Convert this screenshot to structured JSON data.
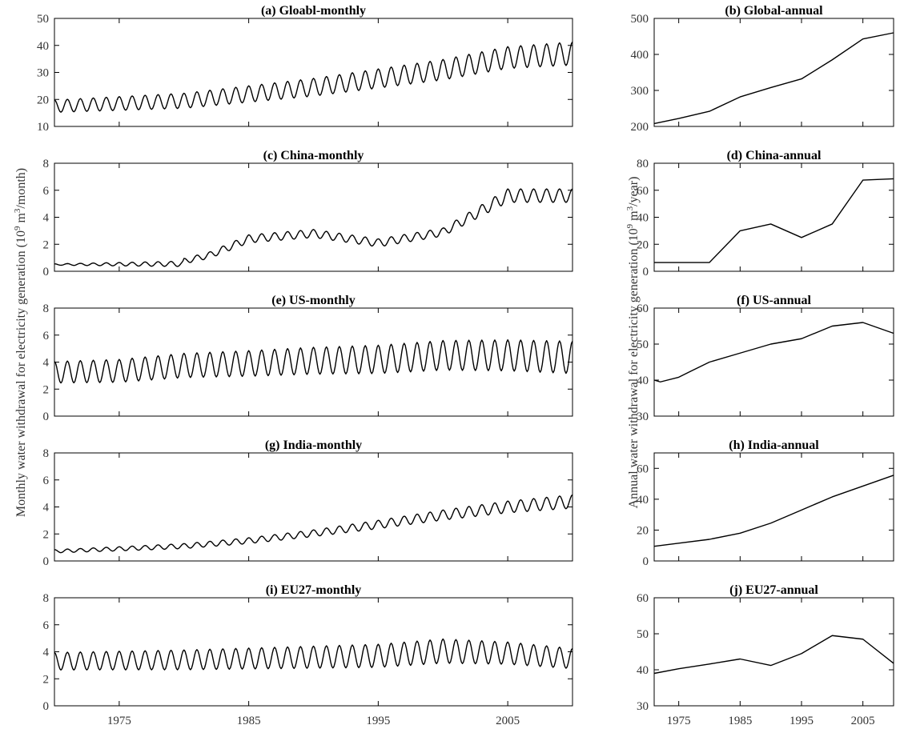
{
  "figure": {
    "ylabel_monthly": "Monthly water withdrawal for electricity generation (10^9 m^3/month)",
    "ylabel_annual": "Annual water withdrawal for electricity generation (10^9 m^3/year)",
    "ylabel_parts": {
      "monthly_base": "Monthly water withdrawal for electricity generation (10",
      "annual_base": "Annual water withdrawal for electricity generation (10",
      "exp": "9",
      "mid": " m",
      "exp2": "3",
      "monthly_unit": "/month)",
      "annual_unit": "/year)"
    }
  },
  "chart_data": [
    {
      "id": "a",
      "type": "line",
      "title": "(a) Gloabl-monthly",
      "xlim": [
        1970,
        2010
      ],
      "ylim": [
        10,
        50
      ],
      "yticks": [
        10,
        20,
        30,
        40,
        50
      ],
      "xticks": [
        1975,
        1985,
        1995,
        2005
      ],
      "show_xtick_labels": false,
      "line_color": "#000000",
      "monthly": {
        "base_points": [
          [
            1970,
            17.5
          ],
          [
            1980,
            19.5
          ],
          [
            1990,
            24.5
          ],
          [
            2000,
            31
          ],
          [
            2005,
            35.5
          ],
          [
            2010,
            37
          ]
        ],
        "amplitude": [
          [
            1970,
            2.3
          ],
          [
            2010,
            4.3
          ]
        ],
        "start_phase_month": 0
      }
    },
    {
      "id": "b",
      "type": "line",
      "title": "(b) Global-annual",
      "xlim": [
        1971,
        2010
      ],
      "ylim": [
        200,
        500
      ],
      "yticks": [
        200,
        300,
        400,
        500
      ],
      "xticks": [
        1975,
        1985,
        1995,
        2005
      ],
      "show_xtick_labels": false,
      "line_color": "#000000",
      "x": [
        1971,
        1975,
        1980,
        1985,
        1990,
        1995,
        2000,
        2005,
        2010
      ],
      "y": [
        208,
        222,
        242,
        282,
        308,
        332,
        385,
        443,
        460
      ]
    },
    {
      "id": "c",
      "type": "line",
      "title": "(c) China-monthly",
      "xlim": [
        1970,
        2010
      ],
      "ylim": [
        0,
        8
      ],
      "yticks": [
        0,
        2,
        4,
        6,
        8
      ],
      "xticks": [
        1975,
        1985,
        1995,
        2005
      ],
      "show_xtick_labels": false,
      "line_color": "#000000",
      "monthly": {
        "base_points": [
          [
            1970,
            0.5
          ],
          [
            1979.9,
            0.55
          ],
          [
            1980,
            0.75
          ],
          [
            1982,
            1.2
          ],
          [
            1985,
            2.4
          ],
          [
            1990,
            2.8
          ],
          [
            1995,
            2.1
          ],
          [
            2000,
            2.9
          ],
          [
            2005,
            5.6
          ],
          [
            2010,
            5.6
          ]
        ],
        "amplitude": [
          [
            1970,
            0.05
          ],
          [
            1980,
            0.2
          ],
          [
            1985,
            0.3
          ],
          [
            2000,
            0.3
          ],
          [
            2005,
            0.5
          ],
          [
            2010,
            0.5
          ]
        ],
        "start_phase_month": 0
      }
    },
    {
      "id": "d",
      "type": "line",
      "title": "(d) China-annual",
      "xlim": [
        1971,
        2010
      ],
      "ylim": [
        0,
        80
      ],
      "yticks": [
        0,
        20,
        40,
        60,
        80
      ],
      "xticks": [
        1975,
        1985,
        1995,
        2005
      ],
      "show_xtick_labels": false,
      "line_color": "#000000",
      "x": [
        1971,
        1975,
        1980,
        1985,
        1990,
        1995,
        2000,
        2005,
        2010
      ],
      "y": [
        6.5,
        6.5,
        6.5,
        30,
        35,
        25,
        35,
        67.5,
        68.5
      ]
    },
    {
      "id": "e",
      "type": "line",
      "title": "(e) US-monthly",
      "xlim": [
        1970,
        2010
      ],
      "ylim": [
        0,
        8
      ],
      "yticks": [
        0,
        2,
        4,
        6,
        8
      ],
      "xticks": [
        1975,
        1985,
        1995,
        2005
      ],
      "show_xtick_labels": false,
      "line_color": "#000000",
      "monthly": {
        "base_points": [
          [
            1970,
            3.25
          ],
          [
            1975,
            3.35
          ],
          [
            1980,
            3.75
          ],
          [
            1985,
            3.9
          ],
          [
            1990,
            4.1
          ],
          [
            1995,
            4.2
          ],
          [
            2000,
            4.5
          ],
          [
            2005,
            4.5
          ],
          [
            2010,
            4.35
          ]
        ],
        "amplitude": [
          [
            1970,
            0.8
          ],
          [
            2010,
            1.2
          ]
        ],
        "start_phase_month": 0
      }
    },
    {
      "id": "f",
      "type": "line",
      "title": "(f) US-annual",
      "xlim": [
        1971,
        2010
      ],
      "ylim": [
        30,
        60
      ],
      "yticks": [
        30,
        40,
        50,
        60
      ],
      "xticks": [
        1975,
        1985,
        1995,
        2005
      ],
      "show_xtick_labels": false,
      "line_color": "#000000",
      "x": [
        1971,
        1972,
        1975,
        1977,
        1980,
        1985,
        1990,
        1995,
        2000,
        2005,
        2010
      ],
      "y": [
        40,
        39.5,
        40.8,
        42.5,
        45,
        47.5,
        50,
        51.5,
        55,
        56,
        53
      ]
    },
    {
      "id": "g",
      "type": "line",
      "title": "(g) India-monthly",
      "xlim": [
        1970,
        2010
      ],
      "ylim": [
        0,
        8
      ],
      "yticks": [
        0,
        2,
        4,
        6,
        8
      ],
      "xticks": [
        1975,
        1985,
        1995,
        2005
      ],
      "show_xtick_labels": false,
      "line_color": "#000000",
      "monthly": {
        "base_points": [
          [
            1970,
            0.72
          ],
          [
            1975,
            0.9
          ],
          [
            1980,
            1.1
          ],
          [
            1985,
            1.5
          ],
          [
            1990,
            2.05
          ],
          [
            1995,
            2.7
          ],
          [
            2000,
            3.4
          ],
          [
            2005,
            4.0
          ],
          [
            2010,
            4.4
          ]
        ],
        "amplitude": [
          [
            1970,
            0.12
          ],
          [
            1990,
            0.25
          ],
          [
            2010,
            0.5
          ]
        ],
        "start_phase_month": 0
      }
    },
    {
      "id": "h",
      "type": "line",
      "title": "(h) India-annual",
      "xlim": [
        1971,
        2010
      ],
      "ylim": [
        0,
        70
      ],
      "yticks": [
        0,
        20,
        40,
        60
      ],
      "xticks": [
        1975,
        1985,
        1995,
        2005
      ],
      "show_xtick_labels": false,
      "line_color": "#000000",
      "x": [
        1971,
        1975,
        1980,
        1985,
        1990,
        1995,
        2000,
        2005,
        2010
      ],
      "y": [
        9.5,
        11.5,
        14,
        18,
        24.5,
        33,
        41.5,
        48.5,
        55.5
      ]
    },
    {
      "id": "i",
      "type": "line",
      "title": "(i) EU27-monthly",
      "xlim": [
        1970,
        2010
      ],
      "ylim": [
        0,
        8
      ],
      "yticks": [
        0,
        2,
        4,
        6,
        8
      ],
      "xticks": [
        1975,
        1985,
        1995,
        2005
      ],
      "show_xtick_labels": true,
      "line_color": "#000000",
      "monthly": {
        "base_points": [
          [
            1970,
            3.3
          ],
          [
            1980,
            3.4
          ],
          [
            1990,
            3.6
          ],
          [
            1995,
            3.7
          ],
          [
            2000,
            4.05
          ],
          [
            2005,
            3.9
          ],
          [
            2010,
            3.5
          ]
        ],
        "amplitude": [
          [
            1970,
            0.65
          ],
          [
            2000,
            0.9
          ],
          [
            2010,
            0.75
          ]
        ],
        "start_phase_month": 0
      }
    },
    {
      "id": "j",
      "type": "line",
      "title": "(j) EU27-annual",
      "xlim": [
        1971,
        2010
      ],
      "ylim": [
        30,
        60
      ],
      "yticks": [
        30,
        40,
        50,
        60
      ],
      "xticks": [
        1975,
        1985,
        1995,
        2005
      ],
      "show_xtick_labels": true,
      "line_color": "#000000",
      "x": [
        1971,
        1975,
        1980,
        1985,
        1990,
        1995,
        2000,
        2005,
        2010
      ],
      "y": [
        39,
        40.3,
        41.6,
        43,
        41.2,
        44.5,
        49.5,
        48.5,
        41.8
      ]
    }
  ]
}
